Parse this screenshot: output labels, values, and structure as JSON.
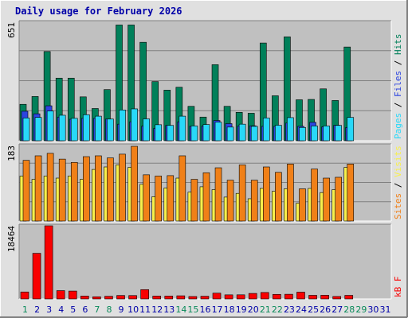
{
  "chart_data": {
    "type": "bar",
    "title": "Daily usage for February 2026",
    "categories": [
      "1",
      "2",
      "3",
      "4",
      "5",
      "6",
      "7",
      "8",
      "9",
      "10",
      "11",
      "12",
      "13",
      "14",
      "15",
      "16",
      "17",
      "18",
      "19",
      "20",
      "21",
      "22",
      "23",
      "24",
      "25",
      "26",
      "27",
      "28",
      "29",
      "30",
      "31"
    ],
    "weekend_days": [
      "1",
      "7",
      "8",
      "14",
      "15",
      "21",
      "22",
      "28",
      "29"
    ],
    "colors": {
      "title": "#0000a8",
      "weekday_label": "#0000a8",
      "weekend_label": "#0a8a5a",
      "hits": "#00805a",
      "files": "#2c44e0",
      "pages": "#28d8f8",
      "visits": "#f8f04c",
      "sites": "#f08018",
      "kbytes": "#f80000",
      "panel_bg": "#c0c0c0",
      "frame_bg": "#e0e0e0"
    },
    "panels": [
      {
        "name": "hits-files-pages",
        "ymax_label": "651",
        "ylim": [
          0,
          651
        ],
        "legend": [
          "Pages",
          "Files",
          "Hits"
        ],
        "series": [
          {
            "name": "Hits",
            "values": [
              200,
              243,
              490,
              344,
              344,
              241,
              177,
              281,
              636,
              636,
              541,
              325,
              278,
              294,
              189,
              130,
              418,
              189,
              156,
              151,
              537,
              247,
              571,
              225,
              227,
              285,
              221,
              515,
              0,
              0,
              0
            ]
          },
          {
            "name": "Files",
            "values": [
              162,
              148,
              192,
              130,
              118,
              123,
              123,
              119,
              91,
              104,
              80,
              68,
              84,
              104,
              79,
              80,
              111,
              94,
              81,
              82,
              79,
              79,
              97,
              79,
              101,
              76,
              85,
              73,
              0,
              0,
              0
            ]
          },
          {
            "name": "Pages",
            "values": [
              125,
              128,
              163,
              140,
              123,
              143,
              135,
              119,
              169,
              175,
              120,
              88,
              84,
              135,
              81,
              89,
              102,
              75,
              91,
              79,
              125,
              85,
              127,
              73,
              81,
              81,
              84,
              128,
              0,
              0,
              0
            ]
          }
        ]
      },
      {
        "name": "visits-sites",
        "ymax_label": "183",
        "ylim": [
          0,
          183
        ],
        "legend": [
          "Sites",
          "Visits"
        ],
        "series": [
          {
            "name": "Visits",
            "values": [
              109,
              101,
              109,
              104,
              109,
              101,
              125,
              131,
              136,
              130,
              89,
              59,
              80,
              104,
              70,
              83,
              76,
              58,
              67,
              54,
              79,
              72,
              78,
              43,
              79,
              69,
              76,
              130,
              0,
              0,
              0
            ]
          },
          {
            "name": "Sites",
            "values": [
              147,
              158,
              164,
              150,
              142,
              156,
              158,
              153,
              162,
              181,
              112,
              109,
              110,
              158,
              101,
              117,
              129,
              99,
              136,
              99,
              131,
              118,
              138,
              78,
              126,
              104,
              106,
              138,
              0,
              0,
              0
            ]
          }
        ]
      },
      {
        "name": "kbytes",
        "ymax_label": "18464",
        "ylim": [
          0,
          18464
        ],
        "legend": [
          "kB F"
        ],
        "series": [
          {
            "name": "kB F",
            "values": [
              1760,
              11520,
              18464,
              2100,
              1990,
              720,
              540,
              670,
              870,
              850,
              2350,
              720,
              720,
              790,
              610,
              680,
              1460,
              1030,
              1040,
              1390,
              1630,
              1150,
              1180,
              1710,
              910,
              930,
              620,
              900,
              0,
              0,
              0
            ]
          }
        ]
      }
    ]
  }
}
